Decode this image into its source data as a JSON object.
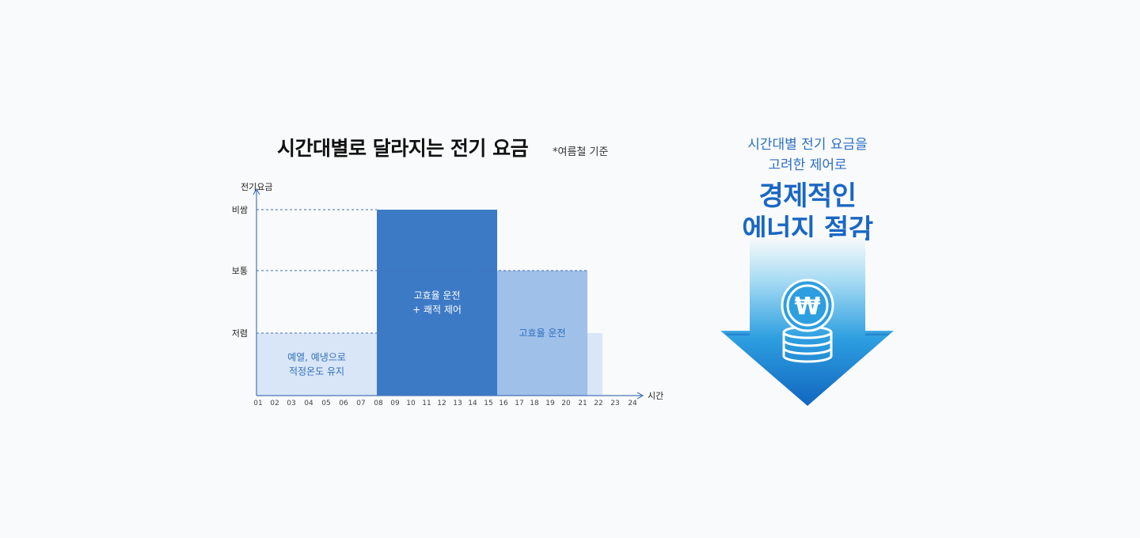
{
  "chart_data": {
    "type": "step-area",
    "title": "시간대별로 달라지는 전기 요금",
    "note": "*여름철 기준",
    "ylabel": "전기요금",
    "xlabel": "시간",
    "y_levels": [
      {
        "label": "저렴",
        "value": 1
      },
      {
        "label": "보통",
        "value": 2
      },
      {
        "label": "비쌈",
        "value": 3
      }
    ],
    "x_ticks": [
      "01",
      "02",
      "03",
      "04",
      "05",
      "06",
      "07",
      "08",
      "09",
      "10",
      "11",
      "12",
      "13",
      "14",
      "15",
      "16",
      "17",
      "18",
      "19",
      "20",
      "21",
      "22",
      "23",
      "24"
    ],
    "segments": [
      {
        "start": "01",
        "end": "09",
        "level": 1,
        "label_lines": [
          "예열, 예냉으로",
          "적정온도 유지"
        ],
        "color": "#d9e6f7",
        "text_color": "#2f6fbd"
      },
      {
        "start": "09",
        "end": "17",
        "level": 3,
        "label_lines": [
          "고효율 운전",
          "+ 쾌적 제어"
        ],
        "color": "#3d7ac6",
        "text_color": "#ffffff"
      },
      {
        "start": "17",
        "end": "23",
        "level": 2,
        "label_lines": [
          "고효율 운전"
        ],
        "color": "#9ec0e9",
        "text_color": "#2f6fbd"
      },
      {
        "start": "23",
        "end": "24",
        "level": 1,
        "label_lines": [],
        "color": "#d9e6f7",
        "text_color": "#2f6fbd"
      }
    ]
  },
  "promo": {
    "sub_line1": "시간대별 전기 요금을",
    "sub_line2": "고려한 제어로",
    "head_line1": "경제적인",
    "head_line2": "에너지 절감",
    "coin_symbol": "₩",
    "icon": "coin-stack-icon"
  }
}
